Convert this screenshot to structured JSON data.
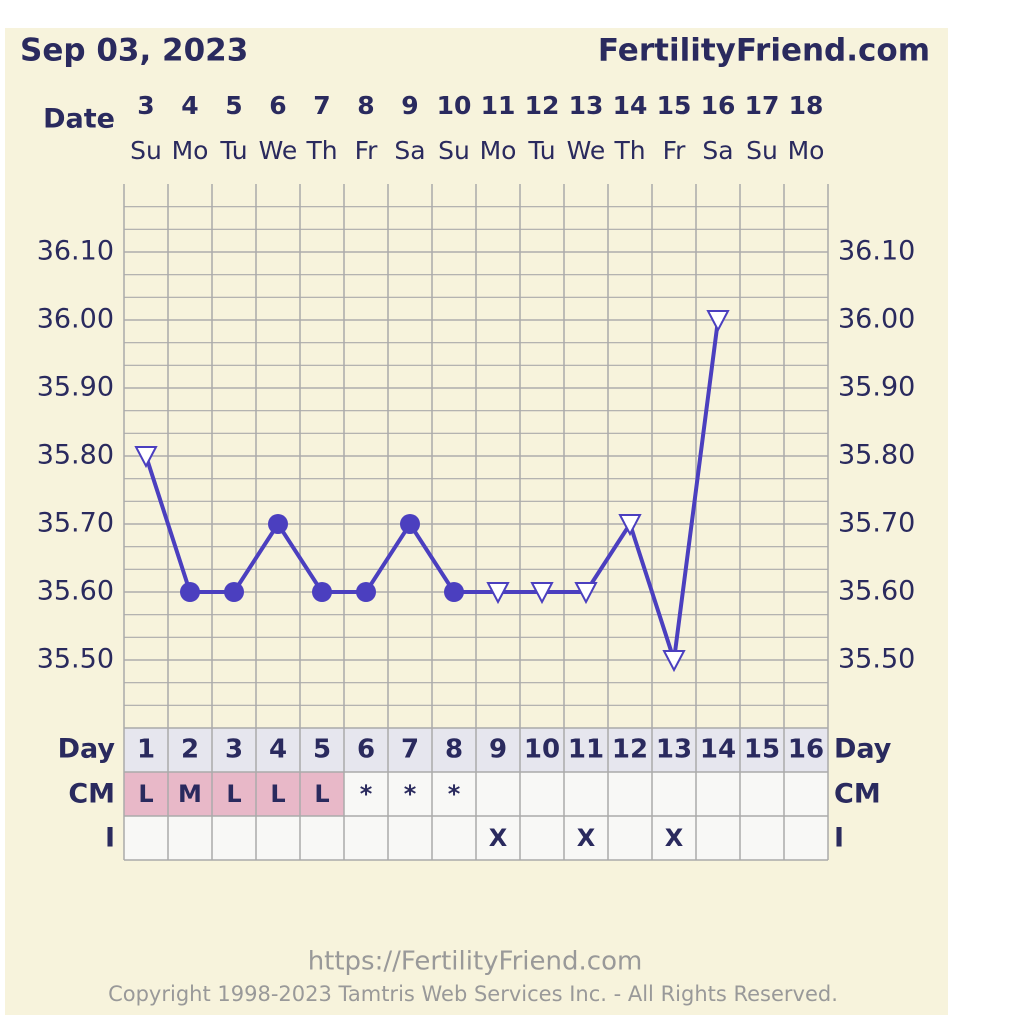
{
  "chart_data": {
    "type": "line",
    "title": "Sep 03, 2023",
    "site": "FertilityFriend.com",
    "date_label": "Date",
    "dates": [
      3,
      4,
      5,
      6,
      7,
      8,
      9,
      10,
      11,
      12,
      13,
      14,
      15,
      16,
      17,
      18
    ],
    "categories": [
      "Su",
      "Mo",
      "Tu",
      "We",
      "Th",
      "Fr",
      "Sa",
      "Su",
      "Mo",
      "Tu",
      "We",
      "Th",
      "Fr",
      "Sa",
      "Su",
      "Mo"
    ],
    "values": [
      35.8,
      35.6,
      35.6,
      35.7,
      35.6,
      35.6,
      35.7,
      35.6,
      35.6,
      35.6,
      35.6,
      35.7,
      35.5,
      36.0,
      null,
      null
    ],
    "markers": [
      "triangle",
      "circle",
      "circle",
      "circle",
      "circle",
      "circle",
      "circle",
      "circle",
      "triangle",
      "triangle",
      "triangle",
      "triangle",
      "triangle",
      "triangle",
      null,
      null
    ],
    "color": "#4b3fbf",
    "ylim": [
      35.4,
      36.2
    ],
    "yticks": [
      {
        "value": 35.5,
        "label": "35.50"
      },
      {
        "value": 35.6,
        "label": "35.60"
      },
      {
        "value": 35.7,
        "label": "35.70"
      },
      {
        "value": 35.8,
        "label": "35.80"
      },
      {
        "value": 35.9,
        "label": "35.90"
      },
      {
        "value": 36.0,
        "label": "36.00"
      },
      {
        "value": 36.1,
        "label": "36.10"
      }
    ],
    "grid": true,
    "rows": {
      "day_label": "Day",
      "days": [
        1,
        2,
        3,
        4,
        5,
        6,
        7,
        8,
        9,
        10,
        11,
        12,
        13,
        14,
        15,
        16
      ],
      "cm_label": "CM",
      "cm": [
        "L",
        "M",
        "L",
        "L",
        "L",
        "*",
        "*",
        "*",
        null,
        null,
        null,
        null,
        null,
        null,
        null,
        null
      ],
      "i_label": "I",
      "i": [
        null,
        null,
        null,
        null,
        null,
        null,
        null,
        null,
        "X",
        null,
        "X",
        null,
        "X",
        null,
        null,
        null
      ]
    }
  },
  "footer": {
    "url": "https://FertilityFriend.com",
    "copyright": "Copyright 1998-2023 Tamtris Web Services Inc. - All Rights Reserved."
  }
}
